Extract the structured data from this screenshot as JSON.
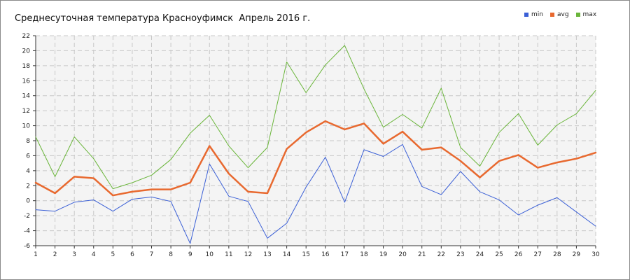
{
  "chart_data": {
    "type": "line",
    "title": "Среднесуточная температура Красноуфимск  Апрель 2016 г.",
    "xlabel": "",
    "ylabel": "",
    "x": [
      1,
      2,
      3,
      4,
      5,
      6,
      7,
      8,
      9,
      10,
      11,
      12,
      13,
      14,
      15,
      16,
      17,
      18,
      19,
      20,
      21,
      22,
      23,
      24,
      25,
      26,
      27,
      28,
      29,
      30
    ],
    "xlim": [
      1,
      30
    ],
    "ylim": [
      -6,
      22
    ],
    "yticks": [
      -6,
      -4,
      -2,
      0,
      2,
      4,
      6,
      8,
      10,
      12,
      14,
      16,
      18,
      20,
      22
    ],
    "grid": true,
    "legend_position": "top-right",
    "series": [
      {
        "name": "min",
        "color": "#3a5fd6",
        "width": 1,
        "values": [
          -1.2,
          -1.4,
          -0.2,
          0.1,
          -1.4,
          0.2,
          0.5,
          -0.1,
          -5.7,
          4.9,
          0.6,
          -0.1,
          -5.0,
          -3.0,
          1.8,
          5.8,
          -0.2,
          6.8,
          5.9,
          7.5,
          1.9,
          0.8,
          3.9,
          1.2,
          0.1,
          -1.9,
          -0.6,
          0.4,
          -1.5,
          -3.4
        ]
      },
      {
        "name": "avg",
        "color": "#e8692f",
        "width": 2.5,
        "values": [
          2.4,
          1.0,
          3.2,
          3.0,
          0.7,
          1.2,
          1.5,
          1.5,
          2.4,
          7.3,
          3.6,
          1.2,
          1.0,
          6.9,
          9.1,
          10.6,
          9.5,
          10.3,
          7.6,
          9.2,
          6.8,
          7.1,
          5.3,
          3.1,
          5.3,
          6.1,
          4.4,
          5.1,
          5.6,
          6.4
        ]
      },
      {
        "name": "max",
        "color": "#6ab53a",
        "width": 1,
        "values": [
          8.5,
          3.2,
          8.5,
          5.6,
          1.6,
          2.4,
          3.4,
          5.5,
          9.0,
          11.4,
          7.3,
          4.4,
          7.1,
          18.5,
          14.4,
          18.1,
          20.7,
          14.9,
          9.8,
          11.5,
          9.7,
          15.0,
          7.1,
          4.6,
          9.1,
          11.6,
          7.4,
          10.1,
          11.6,
          14.7
        ]
      }
    ]
  }
}
